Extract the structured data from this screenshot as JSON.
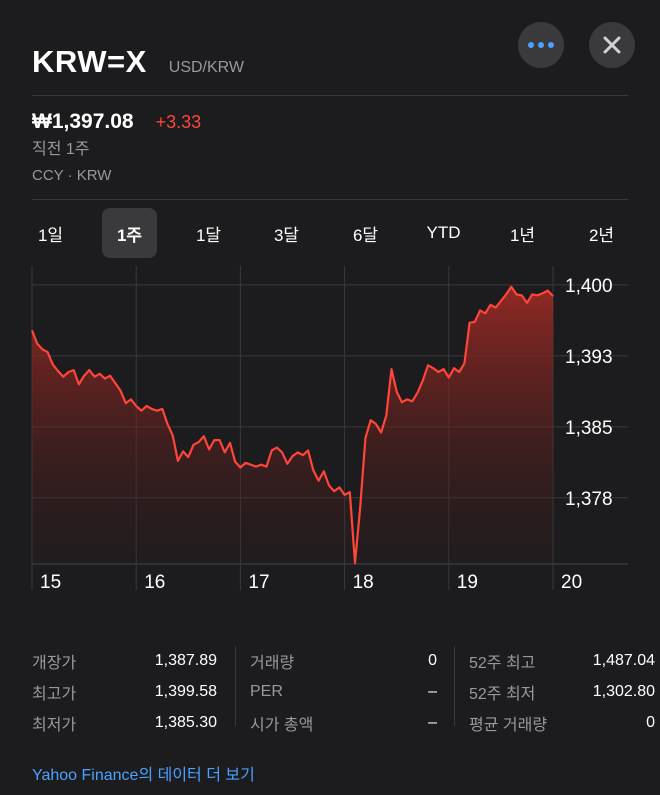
{
  "header": {
    "symbol": "KRW=X",
    "pair": "USD/KRW",
    "more_icon": "ellipsis-icon",
    "close_icon": "close-icon"
  },
  "quote": {
    "price": "₩1,397.08",
    "change": "+3.33",
    "period": "직전 1주",
    "exchange": "CCY · KRW"
  },
  "tabs": [
    {
      "label": "1일",
      "active": false
    },
    {
      "label": "1주",
      "active": true
    },
    {
      "label": "1달",
      "active": false
    },
    {
      "label": "3달",
      "active": false
    },
    {
      "label": "6달",
      "active": false
    },
    {
      "label": "YTD",
      "active": false
    },
    {
      "label": "1년",
      "active": false
    },
    {
      "label": "2년",
      "active": false
    }
  ],
  "chart_data": {
    "type": "area",
    "x_tick_labels": [
      "15",
      "16",
      "17",
      "18",
      "19",
      "20"
    ],
    "y_tick_labels": [
      "1,400",
      "1,393",
      "1,385",
      "1,378"
    ],
    "y_ticks": [
      1400,
      1392.5,
      1385,
      1377.5
    ],
    "ylim": [
      1370.5,
      1402
    ],
    "line_color": "#ff453a",
    "series": [
      {
        "values": [
          1395.2,
          1393.8,
          1393.2,
          1392.9,
          1391.6,
          1390.9,
          1390.3,
          1390.8,
          1391.0,
          1389.5,
          1390.4,
          1391.0,
          1390.3,
          1390.6,
          1390.1,
          1390.4,
          1389.6,
          1388.8,
          1387.5,
          1387.9,
          1387.2,
          1386.7,
          1387.2,
          1386.9,
          1386.7,
          1386.9,
          1385.3,
          1384.1,
          1381.4,
          1382.4,
          1381.8,
          1383.1,
          1383.4,
          1384.0,
          1382.6,
          1383.6,
          1383.6,
          1382.3,
          1383.3,
          1381.3,
          1380.7,
          1381.2,
          1381.0,
          1380.8,
          1381.0,
          1380.8,
          1382.5,
          1382.8,
          1382.3,
          1381.1,
          1381.9,
          1382.3,
          1382.0,
          1382.5,
          1380.4,
          1379.3,
          1380.3,
          1378.8,
          1378.2,
          1378.6,
          1377.8,
          1378.1,
          1370.6,
          1376.5,
          1383.8,
          1385.7,
          1385.3,
          1384.4,
          1386.2,
          1391.1,
          1388.7,
          1387.6,
          1387.9,
          1387.7,
          1388.6,
          1389.9,
          1391.5,
          1391.2,
          1390.8,
          1391.1,
          1390.2,
          1391.2,
          1390.8,
          1391.7,
          1396.0,
          1396.1,
          1397.3,
          1397.0,
          1397.9,
          1397.6,
          1398.3,
          1399.0,
          1399.8,
          1399.0,
          1398.9,
          1398.1,
          1399.0,
          1398.9,
          1399.1,
          1399.4,
          1398.8
        ]
      }
    ]
  },
  "stats": {
    "col1": [
      {
        "label": "개장가",
        "value": "1,387.89"
      },
      {
        "label": "최고가",
        "value": "1,399.58"
      },
      {
        "label": "최저가",
        "value": "1,385.30"
      }
    ],
    "col2": [
      {
        "label": "거래량",
        "value": "0"
      },
      {
        "label": "PER",
        "value": "–"
      },
      {
        "label": "시가 총액",
        "value": "–"
      }
    ],
    "col3": [
      {
        "label": "52주 최고",
        "value": "1,487.04"
      },
      {
        "label": "52주 최저",
        "value": "1,302.80"
      },
      {
        "label": "평균 거래량",
        "value": "0"
      }
    ]
  },
  "footer": {
    "link": "Yahoo Finance의 데이터 더 보기"
  }
}
